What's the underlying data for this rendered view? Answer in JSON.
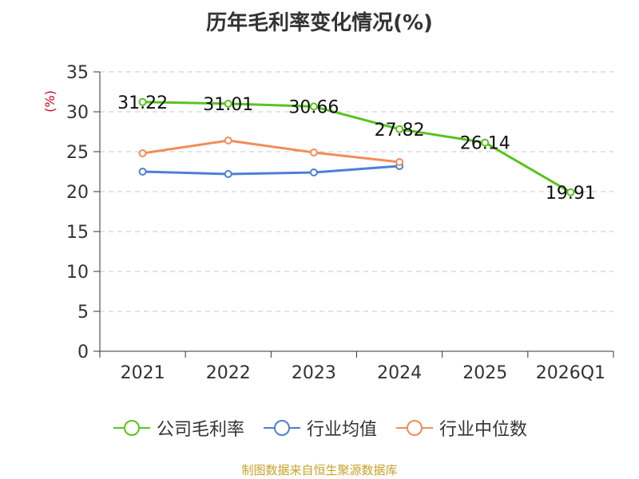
{
  "chart_data": {
    "type": "line",
    "title": "历年毛利率变化情况(%)",
    "ylabel": "(%)",
    "xlabel": "",
    "ylim": [
      0,
      35
    ],
    "yticks": [
      0,
      5,
      10,
      15,
      20,
      25,
      30,
      35
    ],
    "categories": [
      "2021",
      "2022",
      "2023",
      "2024",
      "2025",
      "2026Q1"
    ],
    "grid": true,
    "legend_position": "bottom",
    "series": [
      {
        "name": "公司毛利率",
        "color": "#5ac31f",
        "values": [
          31.22,
          31.01,
          30.66,
          27.82,
          26.14,
          19.91
        ],
        "labels": [
          "31.22",
          "31.01",
          "30.66",
          "27.82",
          "26.14",
          "19.91"
        ]
      },
      {
        "name": "行业均值",
        "color": "#4f7fd6",
        "values": [
          22.5,
          22.2,
          22.4,
          23.2,
          null,
          null
        ]
      },
      {
        "name": "行业中位数",
        "color": "#f28c5a",
        "values": [
          24.8,
          26.4,
          24.9,
          23.7,
          null,
          null
        ]
      }
    ]
  },
  "footer": {
    "source": "制图数据来自恒生聚源数据库"
  }
}
